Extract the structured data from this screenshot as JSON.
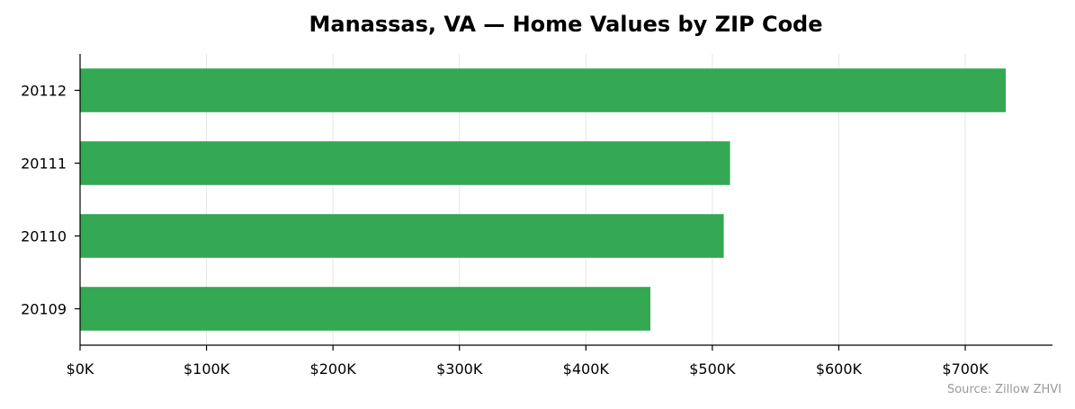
{
  "chart_data": {
    "type": "bar",
    "orientation": "horizontal",
    "title": "Manassas, VA — Home Values by ZIP Code",
    "categories": [
      "20109",
      "20110",
      "20111",
      "20112"
    ],
    "values": [
      451000,
      509000,
      514000,
      732000
    ],
    "x_ticks": [
      {
        "value": 0,
        "label": "$0K"
      },
      {
        "value": 100000,
        "label": "$100K"
      },
      {
        "value": 200000,
        "label": "$200K"
      },
      {
        "value": 300000,
        "label": "$300K"
      },
      {
        "value": 400000,
        "label": "$400K"
      },
      {
        "value": 500000,
        "label": "$500K"
      },
      {
        "value": 600000,
        "label": "$600K"
      },
      {
        "value": 700000,
        "label": "$700K"
      }
    ],
    "xlim": [
      0,
      769000
    ],
    "grid": "vertical",
    "bar_color": "#34a853",
    "grid_color": "#e6e6e6",
    "source": "Source: Zillow ZHVI"
  }
}
